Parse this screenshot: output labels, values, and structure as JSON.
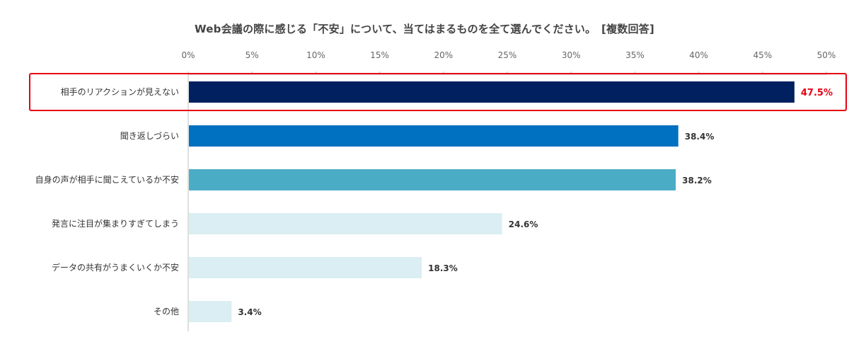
{
  "chart_data": {
    "type": "bar",
    "orientation": "horizontal",
    "title": "Web会議の際に感じる「不安」について、当てはまるものを全て選んでください。　[複数回答]",
    "categories": [
      "相手のリアクションが見えない",
      "聞き返しづらい",
      "自身の声が相手に聞こえているか不安",
      "発言に注目が集まりすぎてしまう",
      "データの共有がうまくいくか不安",
      "その他"
    ],
    "values": [
      47.5,
      38.4,
      38.2,
      24.6,
      18.3,
      3.4
    ],
    "value_labels": [
      "47.5%",
      "38.4%",
      "38.2%",
      "24.6%",
      "18.3%",
      "3.4%"
    ],
    "colors": [
      "#00205f",
      "#0070c0",
      "#4bacc6",
      "#daeef3",
      "#daeef3",
      "#daeef3"
    ],
    "highlight_index": 0,
    "highlight_color": "#e60012",
    "xlim": [
      0,
      50
    ],
    "xticks": [
      0,
      5,
      10,
      15,
      20,
      25,
      30,
      35,
      40,
      45,
      50
    ],
    "xtick_labels": [
      "0%",
      "5%",
      "10%",
      "15%",
      "20%",
      "25%",
      "30%",
      "35%",
      "40%",
      "45%",
      "50%"
    ],
    "axis_position": "top",
    "grid": false,
    "legend": "none"
  }
}
